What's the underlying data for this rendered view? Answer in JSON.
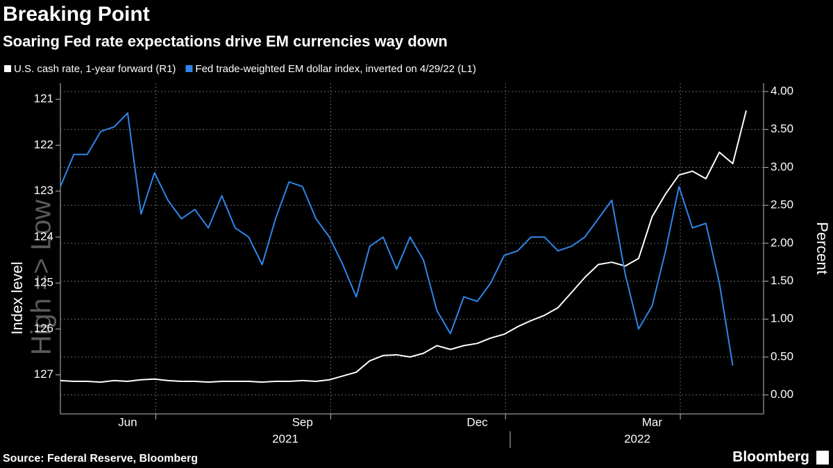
{
  "chart_data": {
    "type": "line",
    "title": "Breaking Point",
    "subtitle": "Soaring Fed rate expectations drive EM currencies way down",
    "ylabel": "Index level",
    "y2label": "Percent",
    "watermark": "High => Low",
    "source": "Source: Federal Reserve, Bloomberg",
    "brand": "Bloomberg",
    "categories": [
      null,
      null,
      null,
      null,
      null,
      "Jun",
      null,
      null,
      null,
      null,
      null,
      null,
      null,
      null,
      null,
      null,
      null,
      null,
      "Sep",
      null,
      null,
      null,
      null,
      null,
      null,
      null,
      null,
      null,
      null,
      null,
      null,
      "Dec",
      null,
      null,
      null,
      null,
      null,
      null,
      null,
      null,
      null,
      null,
      null,
      null,
      "Mar",
      null,
      null,
      null,
      null,
      null,
      null,
      null
    ],
    "x_groups": [
      "2021",
      "2022"
    ],
    "series": [
      {
        "name": "U.S. cash rate, 1-year forward (R1)",
        "color": "#ffffff",
        "axis": "y2",
        "values": [
          0.19,
          0.18,
          0.18,
          0.17,
          0.19,
          0.18,
          0.2,
          0.21,
          0.19,
          0.18,
          0.18,
          0.17,
          0.18,
          0.18,
          0.18,
          0.17,
          0.18,
          0.18,
          0.19,
          0.18,
          0.2,
          0.25,
          0.3,
          0.45,
          0.52,
          0.53,
          0.5,
          0.55,
          0.65,
          0.6,
          0.65,
          0.68,
          0.75,
          0.8,
          0.9,
          0.98,
          1.05,
          1.15,
          1.35,
          1.55,
          1.72,
          1.75,
          1.7,
          1.8,
          2.35,
          2.65,
          2.9,
          2.95,
          2.85,
          3.2,
          3.05,
          3.75
        ]
      },
      {
        "name": "Fed trade-weighted EM dollar index, inverted  on 4/29/22 (L1)",
        "color": "#2f86ea",
        "axis": "y",
        "values": [
          122.9,
          122.2,
          122.2,
          121.7,
          121.6,
          121.3,
          123.5,
          122.6,
          123.2,
          123.6,
          123.4,
          123.8,
          123.1,
          123.8,
          124.0,
          124.6,
          123.6,
          122.8,
          122.9,
          123.6,
          124.0,
          124.6,
          125.3,
          124.2,
          124.0,
          124.7,
          124.0,
          124.5,
          125.6,
          126.1,
          125.3,
          125.4,
          125.0,
          124.4,
          124.3,
          124.0,
          124.0,
          124.3,
          124.2,
          124.0,
          123.6,
          123.2,
          124.8,
          126.0,
          125.5,
          124.3,
          122.9,
          123.8,
          123.7,
          125.0,
          126.8,
          null
        ]
      }
    ],
    "ylim": [
      127.85,
      120.65
    ],
    "yticks": [
      121,
      122,
      123,
      124,
      125,
      126,
      127
    ],
    "y2lim": [
      -0.25,
      4.11
    ],
    "y2ticks": [
      {
        "value": 0,
        "label": "0.00"
      },
      {
        "value": 0.5,
        "label": "0.50"
      },
      {
        "value": 1,
        "label": "1.00"
      },
      {
        "value": 1.5,
        "label": "1.50"
      },
      {
        "value": 2,
        "label": "2.00"
      },
      {
        "value": 2.5,
        "label": "2.50"
      },
      {
        "value": 3,
        "label": "3.00"
      },
      {
        "value": 3.5,
        "label": "3.50"
      },
      {
        "value": 4,
        "label": "4.00"
      }
    ],
    "grid": true
  }
}
